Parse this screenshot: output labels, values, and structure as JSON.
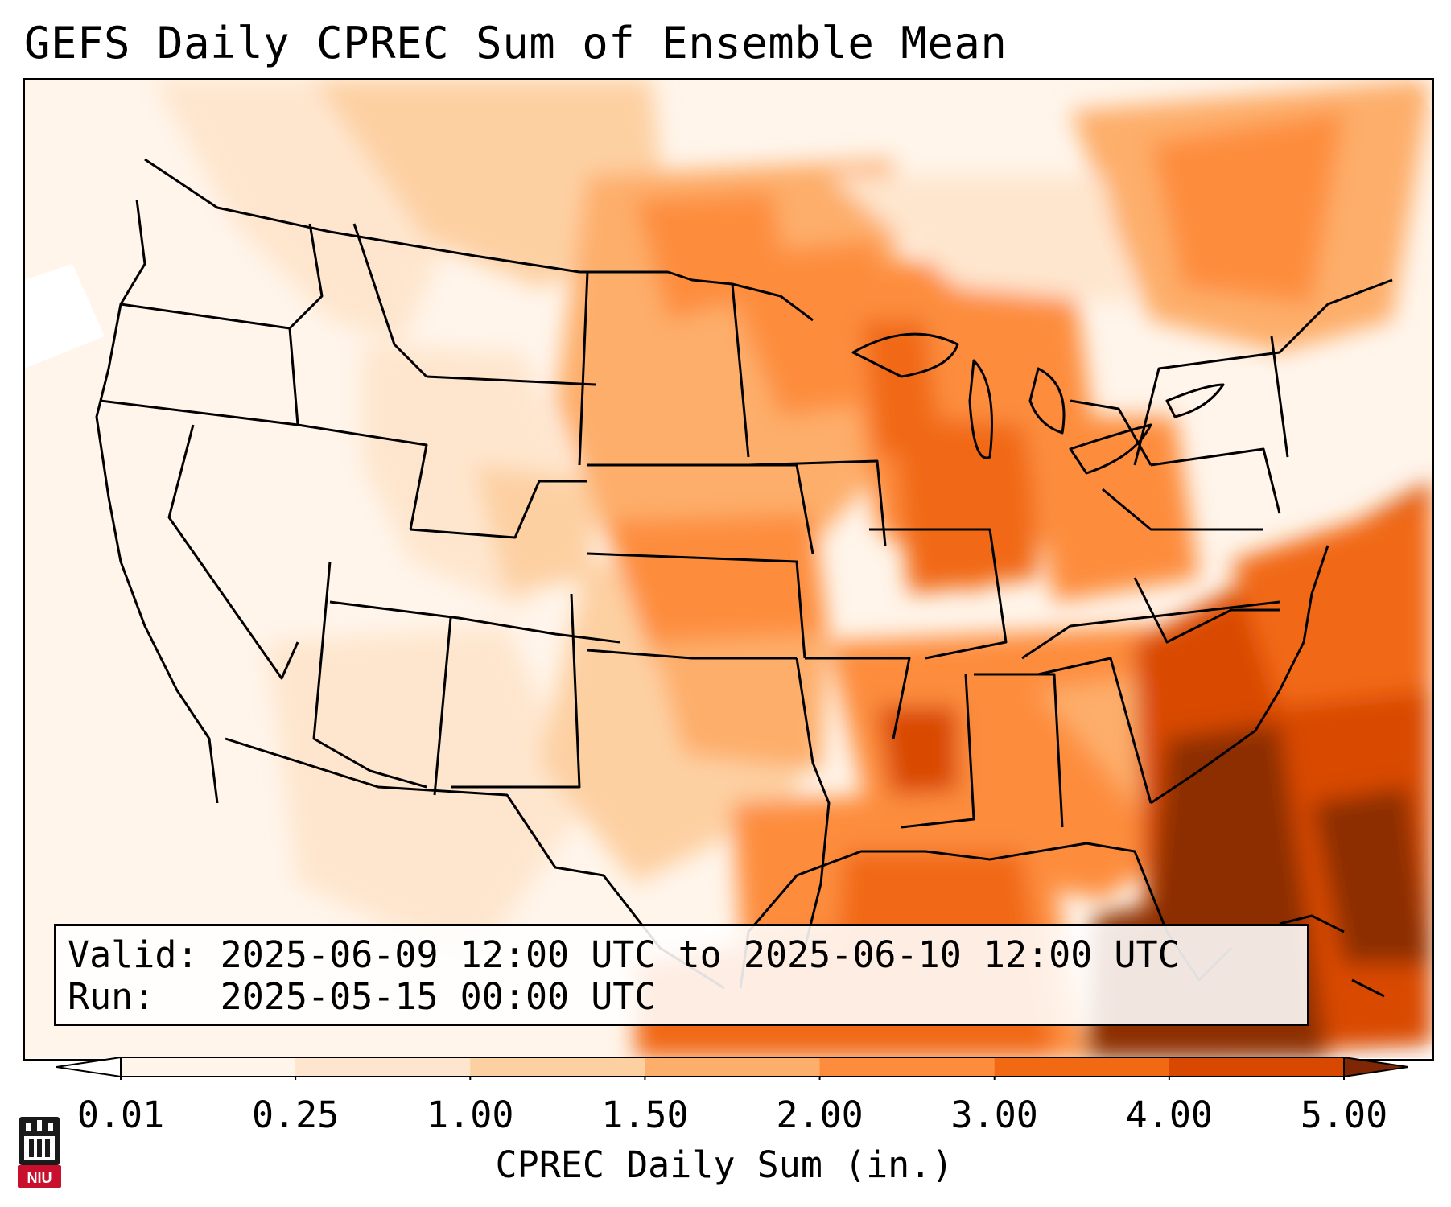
{
  "title": "GEFS Daily CPREC Sum of Ensemble Mean",
  "valid_line": "Valid: 2025-06-09 12:00 UTC to 2025-06-10 12:00 UTC",
  "run_line": "Run:   2025-05-15 00:00 UTC",
  "colorbar": {
    "label": "CPREC Daily Sum (in.)",
    "ticks": [
      "0.01",
      "0.25",
      "1.00",
      "1.50",
      "2.00",
      "3.00",
      "4.00",
      "5.00"
    ],
    "colors": [
      "#fff5eb",
      "#fee6ce",
      "#fdd0a2",
      "#fdae6b",
      "#fd8d3c",
      "#f16913",
      "#d94801",
      "#8c2d04"
    ],
    "under_color": "#ffffff",
    "over_color": "#7f2704"
  },
  "logo": {
    "text": "NIU",
    "icon": "niu-tower-icon"
  }
}
